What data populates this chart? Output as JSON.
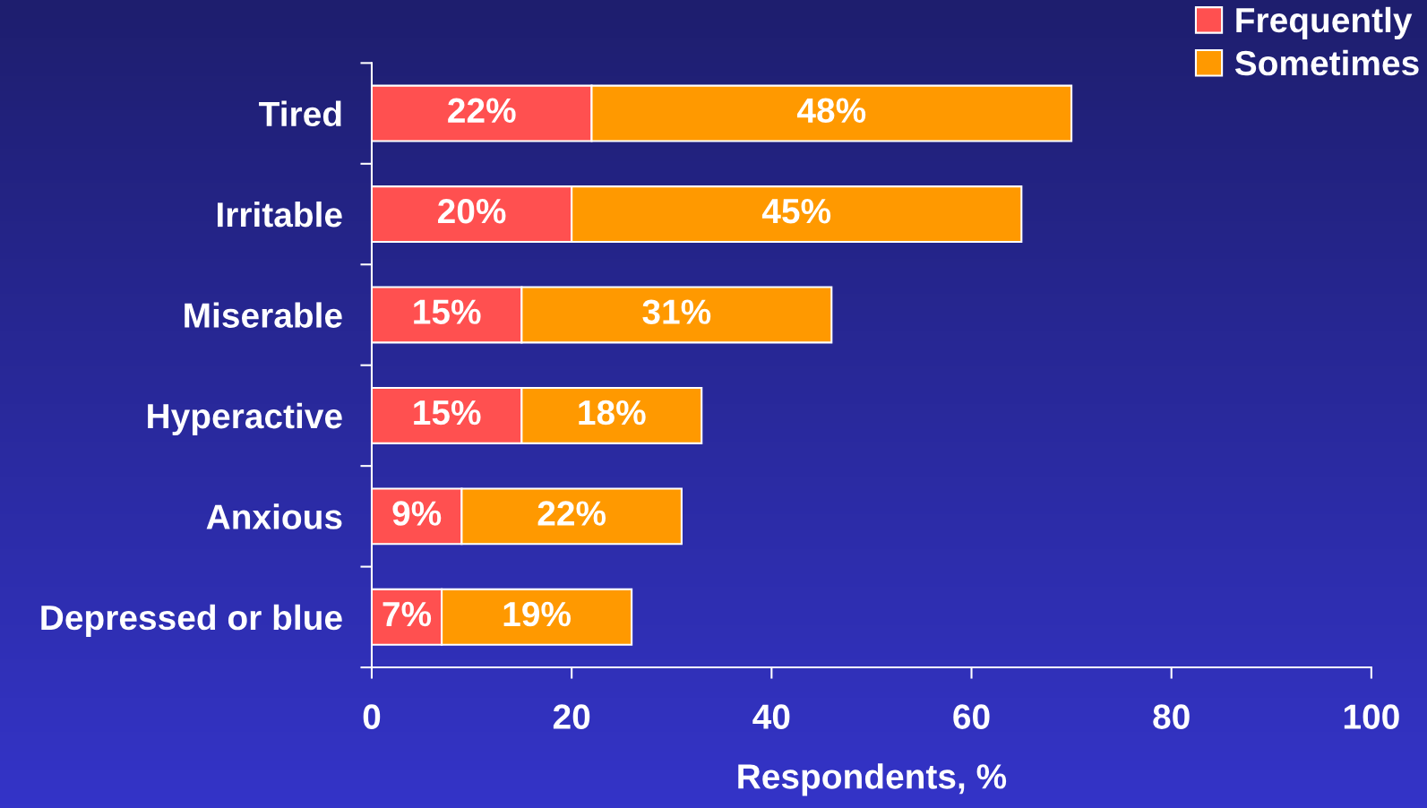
{
  "chart_data": {
    "type": "bar",
    "orientation": "horizontal",
    "stacked": true,
    "categories": [
      "Tired",
      "Irritable",
      "Miserable",
      "Hyperactive",
      "Anxious",
      "Depressed or blue"
    ],
    "series": [
      {
        "name": "Frequently",
        "color": "#ff5050",
        "values": [
          22,
          20,
          15,
          15,
          9,
          7
        ],
        "value_labels": [
          "22%",
          "20%",
          "15%",
          "15%",
          "9%",
          "7%"
        ]
      },
      {
        "name": "Sometimes",
        "color": "#ff9900",
        "values": [
          48,
          45,
          31,
          18,
          22,
          19
        ],
        "value_labels": [
          "48%",
          "45%",
          "31%",
          "18%",
          "22%",
          "19%"
        ]
      }
    ],
    "xlabel": "Respondents, %",
    "xlim": [
      0,
      100
    ],
    "xticks": [
      0,
      20,
      40,
      60,
      80,
      100
    ],
    "legend": "top right"
  }
}
